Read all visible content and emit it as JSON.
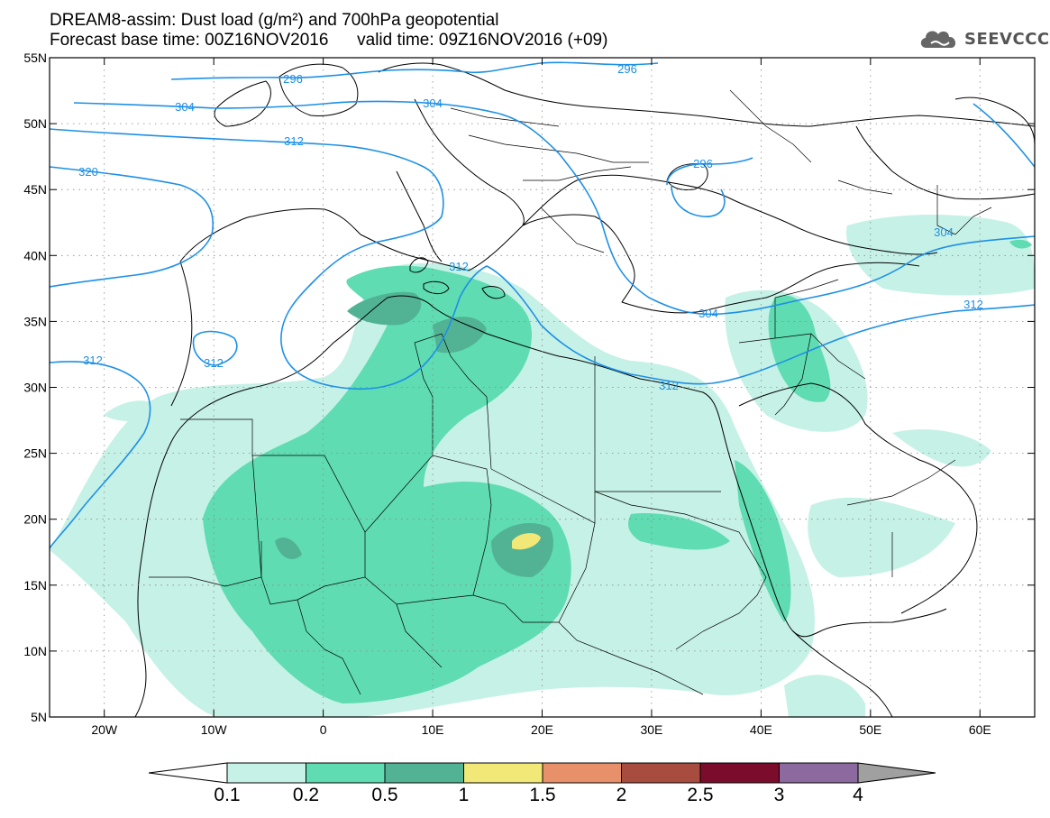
{
  "header": {
    "title": "DREAM8-assim: Dust load (g/m²) and 700hPa geopotential",
    "base_time": "Forecast base time: 00Z16NOV2016",
    "valid_time": "valid time: 09Z16NOV2016 (+09)"
  },
  "logo": {
    "text": "SEEVCCC",
    "icon": "cloud-icon"
  },
  "map": {
    "lon_labels": [
      "20W",
      "10W",
      "0",
      "10E",
      "20E",
      "30E",
      "40E",
      "50E",
      "60E"
    ],
    "lat_labels": [
      "55N",
      "50N",
      "45N",
      "40N",
      "35N",
      "30N",
      "25N",
      "20N",
      "15N",
      "10N",
      "5N"
    ],
    "contour_labels": [
      "296",
      "296",
      "296",
      "304",
      "304",
      "304",
      "304",
      "312",
      "312",
      "312",
      "312",
      "312",
      "312",
      "320"
    ]
  },
  "colorbar": {
    "labels": [
      "0.1",
      "0.2",
      "0.5",
      "1",
      "1.5",
      "2",
      "2.5",
      "3",
      "4"
    ],
    "colors": [
      "#ffffff",
      "#c6f1e6",
      "#5fdcb2",
      "#52b394",
      "#f2e878",
      "#e8906a",
      "#a84c40",
      "#7c0c2c",
      "#8c6aa0",
      "#a0a0a0"
    ]
  },
  "dust_colors": {
    "low": "#c6f1e6",
    "medium": "#5fdcb2",
    "high": "#52b394",
    "peak": "#f2e878"
  },
  "contour_color": "#1e90e6"
}
